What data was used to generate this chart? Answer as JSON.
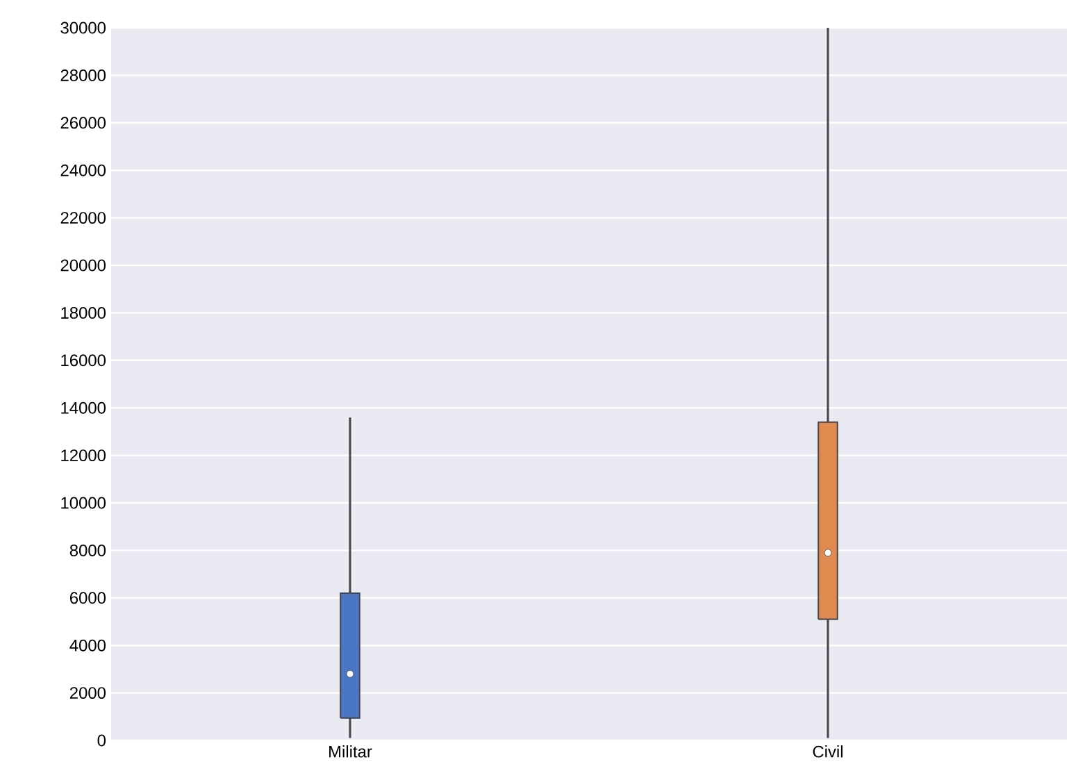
{
  "chart_data": {
    "type": "box",
    "categories": [
      "Militar",
      "Civil"
    ],
    "boxes": [
      {
        "low": 100,
        "q1": 940,
        "median": 2800,
        "q3": 6200,
        "high": 13600
      },
      {
        "low": 100,
        "q1": 5100,
        "median": 7900,
        "q3": 13400,
        "high": 30000
      }
    ],
    "colors": [
      "#4a76c6",
      "#e08a50"
    ],
    "ylim": [
      0,
      30000
    ],
    "yticks": [
      0,
      2000,
      4000,
      6000,
      8000,
      10000,
      12000,
      14000,
      16000,
      18000,
      20000,
      22000,
      24000,
      26000,
      28000,
      30000
    ],
    "grid": "y"
  }
}
